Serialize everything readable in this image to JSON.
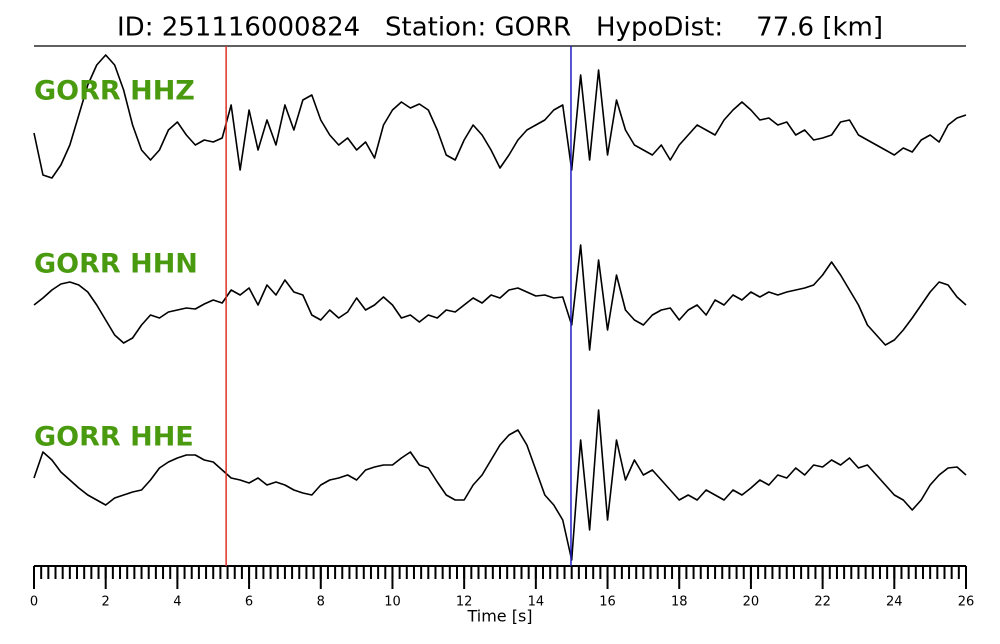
{
  "chart_data": {
    "type": "line",
    "title": "ID: 251116000824   Station: GORR   HypoDist:    77.6 [km]",
    "xlabel": "Time [s]",
    "xlim": [
      0,
      26
    ],
    "xticks": [
      0,
      2,
      4,
      6,
      8,
      10,
      12,
      14,
      16,
      18,
      20,
      22,
      24,
      26
    ],
    "xticks_minor": [
      0,
      0.2,
      0.4,
      0.6,
      0.8,
      1,
      1.2,
      1.4,
      1.6,
      1.8,
      2,
      2.2,
      2.4,
      2.6,
      2.8,
      3,
      3.2,
      3.4,
      3.6,
      3.8,
      4,
      4.2,
      4.4,
      4.6,
      4.8,
      5,
      5.2,
      5.4,
      5.6,
      5.8,
      6,
      6.2,
      6.4,
      6.6,
      6.8,
      7,
      7.2,
      7.4,
      7.6,
      7.8,
      8,
      8.2,
      8.4,
      8.6,
      8.8,
      9,
      9.2,
      9.4,
      9.6,
      9.8,
      10,
      10.2,
      10.4,
      10.6,
      10.8,
      11,
      11.2,
      11.4,
      11.6,
      11.8,
      12,
      12.2,
      12.4,
      12.6,
      12.8,
      13,
      13.2,
      13.4,
      13.6,
      13.8,
      14,
      14.2,
      14.4,
      14.6,
      14.8,
      15,
      15.2,
      15.4,
      15.6,
      15.8,
      16,
      16.2,
      16.4,
      16.6,
      16.8,
      17,
      17.2,
      17.4,
      17.6,
      17.8,
      18,
      18.2,
      18.4,
      18.6,
      18.8,
      19,
      19.2,
      19.4,
      19.6,
      19.8,
      20,
      20.2,
      20.4,
      20.6,
      20.8,
      21,
      21.2,
      21.4,
      21.6,
      21.8,
      22,
      22.2,
      22.4,
      22.6,
      22.8,
      23,
      23.2,
      23.4,
      23.6,
      23.8,
      24,
      24.2,
      24.4,
      24.6,
      24.8,
      25,
      25.2,
      25.4,
      25.6,
      25.8,
      26
    ],
    "markers": [
      {
        "x": 5.36,
        "color": "#e0302a"
      },
      {
        "x": 14.98,
        "color": "#2020c0"
      }
    ],
    "x": [
      0,
      0.25,
      0.5,
      0.75,
      1,
      1.25,
      1.5,
      1.75,
      2,
      2.25,
      2.5,
      2.75,
      3,
      3.25,
      3.5,
      3.75,
      4,
      4.25,
      4.5,
      4.75,
      5,
      5.25,
      5.5,
      5.75,
      6,
      6.25,
      6.5,
      6.75,
      7,
      7.25,
      7.5,
      7.75,
      8,
      8.25,
      8.5,
      8.75,
      9,
      9.25,
      9.5,
      9.75,
      10,
      10.25,
      10.5,
      10.75,
      11,
      11.25,
      11.5,
      11.75,
      12,
      12.25,
      12.5,
      12.75,
      13,
      13.25,
      13.5,
      13.75,
      14,
      14.25,
      14.5,
      14.75,
      15,
      15.25,
      15.5,
      15.75,
      16,
      16.25,
      16.5,
      16.75,
      17,
      17.25,
      17.5,
      17.75,
      18,
      18.25,
      18.5,
      18.75,
      19,
      19.25,
      19.5,
      19.75,
      20,
      20.25,
      20.5,
      20.75,
      21,
      21.25,
      21.5,
      21.75,
      22,
      22.25,
      22.5,
      22.75,
      23,
      23.25,
      23.5,
      23.75,
      24,
      24.25,
      24.5,
      24.75,
      25,
      25.25,
      25.5,
      25.75,
      26
    ],
    "label_color": "#4a9a10",
    "series": [
      {
        "name": "GORR HHZ",
        "color": "#000000",
        "values": [
          -0.3,
          -4.5,
          -4.8,
          -3.5,
          -1.5,
          1.5,
          4.5,
          6.5,
          7.5,
          6.5,
          4,
          0.5,
          -2,
          -3,
          -2,
          0,
          0.8,
          -0.5,
          -1.5,
          -1,
          -1.2,
          -0.8,
          2.5,
          -4,
          2,
          -2,
          1,
          -1.5,
          2.5,
          0,
          3,
          3.5,
          1,
          -0.5,
          -1.5,
          -0.8,
          -2,
          -1.2,
          -2.8,
          0.5,
          2,
          2.8,
          2.2,
          2.6,
          2,
          0,
          -2.5,
          -3,
          -1,
          0.5,
          -0.5,
          -2,
          -3.8,
          -2.5,
          -1,
          0,
          0.5,
          1,
          2,
          2.5,
          -4,
          5.5,
          -3,
          6,
          -2.5,
          3,
          0,
          -1.5,
          -2,
          -2.5,
          -1.5,
          -3,
          -1.5,
          -0.5,
          0.5,
          0,
          -0.5,
          1,
          2,
          2.8,
          2,
          1,
          1.2,
          0.5,
          0.8,
          -0.5,
          0,
          -1,
          -0.8,
          -0.5,
          0.8,
          1,
          -0.5,
          -1,
          -1.5,
          -2,
          -2.5,
          -1.8,
          -2.2,
          -1,
          -0.5,
          -1.2,
          0.5,
          1.2,
          1.5
        ]
      },
      {
        "name": "GORR HHN",
        "color": "#000000",
        "values": [
          -0.5,
          0.2,
          1,
          1.6,
          1.8,
          1.5,
          0.8,
          -0.5,
          -2,
          -3.5,
          -4.3,
          -3.8,
          -2.5,
          -1.5,
          -1.8,
          -1.2,
          -1,
          -0.8,
          -0.9,
          -0.4,
          0,
          -0.3,
          1,
          0.5,
          1.2,
          -0.5,
          1.5,
          0.5,
          2,
          0.8,
          0.5,
          -1.5,
          -2,
          -1,
          -1.8,
          -1.2,
          0.2,
          -1,
          -0.5,
          0.3,
          -0.5,
          -1.8,
          -1.5,
          -2.2,
          -1.5,
          -1.8,
          -1,
          -1.2,
          -0.5,
          0.2,
          -0.3,
          0.5,
          0.2,
          1,
          1.2,
          0.8,
          0.4,
          0.5,
          0.2,
          0.3,
          -2.5,
          5.5,
          -5,
          4,
          -3,
          2.5,
          -1,
          -2,
          -2.5,
          -1.5,
          -1,
          -0.8,
          -2,
          -1,
          -0.5,
          -1.5,
          0,
          -0.5,
          0.5,
          0,
          0.8,
          0.3,
          0.8,
          0.5,
          0.8,
          1,
          1.2,
          1.5,
          2.5,
          3.8,
          2.5,
          1,
          -0.5,
          -2.5,
          -3.5,
          -4.5,
          -4,
          -3,
          -1.8,
          -0.5,
          0.8,
          1.8,
          1.5,
          0.3,
          -0.5
        ]
      },
      {
        "name": "GORR HHE",
        "color": "#000000",
        "values": [
          -0.8,
          1.8,
          1,
          -0.2,
          -1,
          -1.8,
          -2.5,
          -3,
          -3.5,
          -2.8,
          -2.5,
          -2.2,
          -2,
          -1,
          0.2,
          0.8,
          1.2,
          1.5,
          1.5,
          1,
          0.8,
          0,
          -0.8,
          -1,
          -1.3,
          -0.8,
          -1.5,
          -1.2,
          -1.5,
          -2,
          -2.3,
          -2.5,
          -1.5,
          -1,
          -0.8,
          -0.5,
          -1,
          0,
          0.3,
          0.5,
          0.5,
          1.2,
          1.8,
          0.5,
          0.2,
          -1.2,
          -2.5,
          -3,
          -3,
          -1.5,
          -0.5,
          1,
          2.5,
          3.5,
          4,
          2.5,
          0,
          -2.5,
          -3.5,
          -5,
          -9,
          3,
          -6,
          6,
          -5,
          3,
          -1,
          1,
          -0.5,
          0,
          -1,
          -2,
          -3,
          -2.5,
          -3,
          -2,
          -2.5,
          -3,
          -2,
          -2.5,
          -1.8,
          -1,
          -1.5,
          -0.5,
          -0.8,
          0.2,
          -0.5,
          0.5,
          0.3,
          1,
          0.5,
          1.2,
          0.2,
          0.5,
          -0.5,
          -1.5,
          -2.5,
          -3,
          -4,
          -3,
          -1.5,
          -0.5,
          0.2,
          0.3,
          -0.5
        ]
      }
    ]
  }
}
